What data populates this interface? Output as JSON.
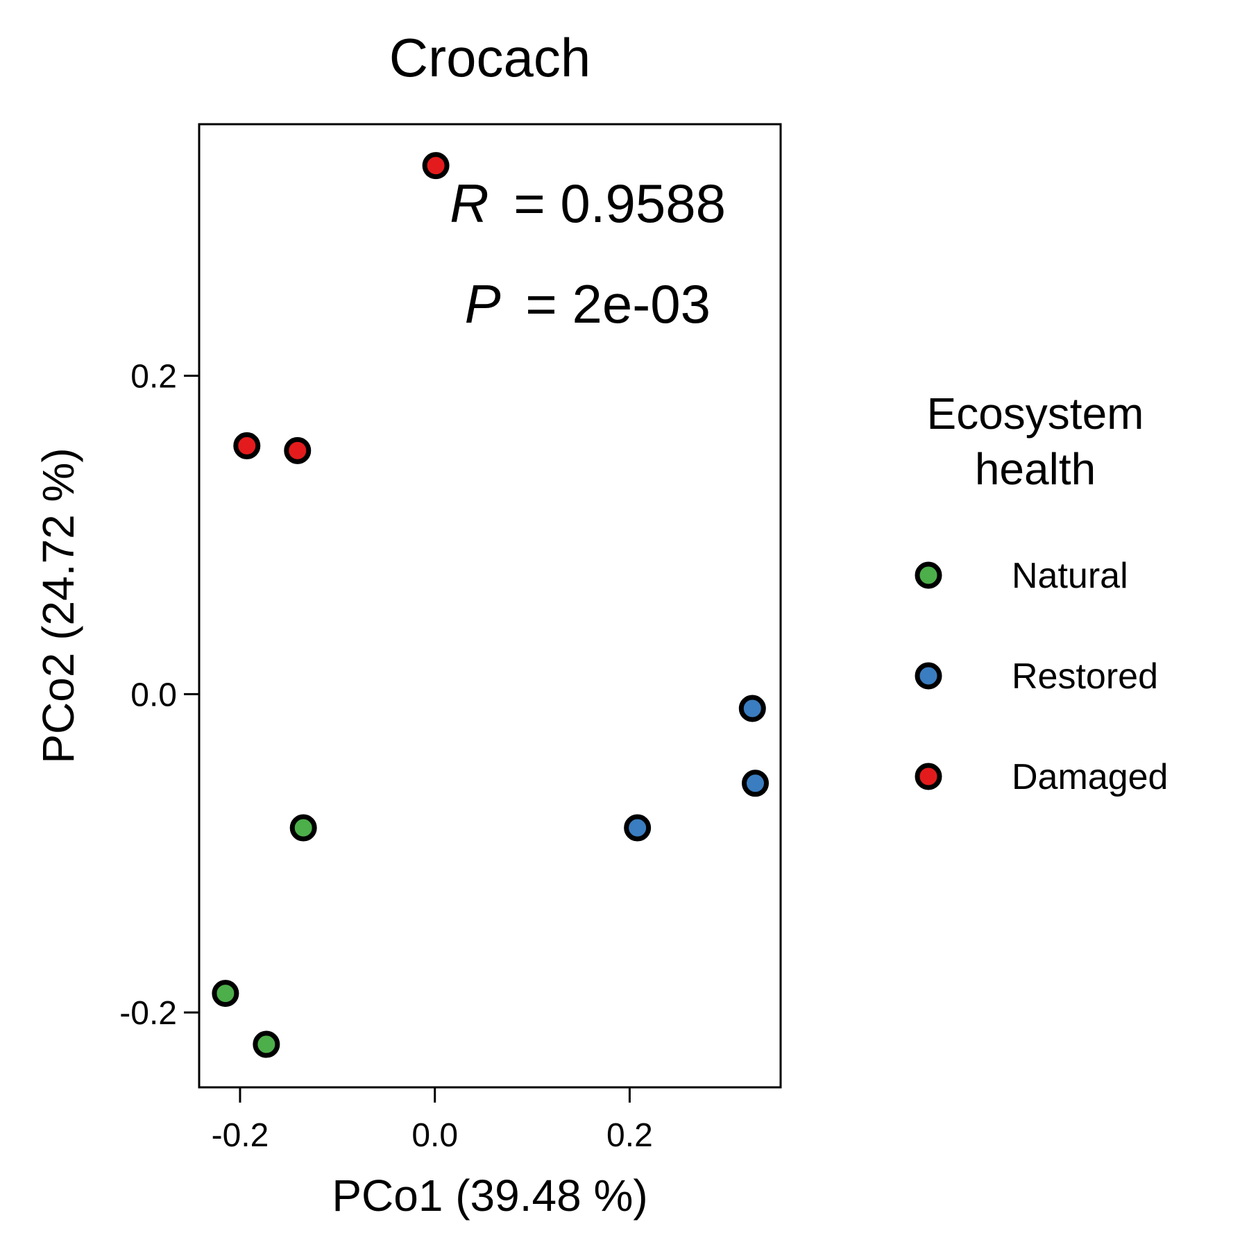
{
  "colors": {
    "Natural": "#4caf4a",
    "Restored": "#3a7dc0",
    "Damaged": "#e41b1c",
    "outline": "#000000"
  },
  "chart_data": {
    "type": "scatter",
    "title": "Crocach",
    "xlabel": "PCo1 (39.48 %)",
    "ylabel": "PCo2 (24.72 %)",
    "xlim": [
      -0.242,
      0.355
    ],
    "ylim": [
      -0.247,
      0.358
    ],
    "xticks": [
      -0.2,
      0.0,
      0.2
    ],
    "xtick_labels": [
      "-0.2",
      "0.0",
      "0.2"
    ],
    "yticks": [
      -0.2,
      0.0,
      0.2
    ],
    "ytick_labels": [
      "-0.2",
      "0.0",
      "0.2"
    ],
    "grid": false,
    "legend": {
      "title_lines": [
        "Ecosystem",
        "health"
      ],
      "placement": "right"
    },
    "stats": {
      "r_var": "R",
      "r_eq": "= 0.9588",
      "p_var": "P",
      "p_eq": "= 2e-03"
    },
    "series": [
      {
        "name": "Natural",
        "points": [
          {
            "x": -0.135,
            "y": -0.084
          },
          {
            "x": -0.215,
            "y": -0.188
          },
          {
            "x": -0.173,
            "y": -0.22
          }
        ]
      },
      {
        "name": "Restored",
        "points": [
          {
            "x": 0.326,
            "y": -0.009
          },
          {
            "x": 0.329,
            "y": -0.056
          },
          {
            "x": 0.208,
            "y": -0.084
          }
        ]
      },
      {
        "name": "Damaged",
        "points": [
          {
            "x": 0.001,
            "y": 0.332
          },
          {
            "x": -0.193,
            "y": 0.156
          },
          {
            "x": -0.141,
            "y": 0.153
          }
        ]
      }
    ]
  }
}
